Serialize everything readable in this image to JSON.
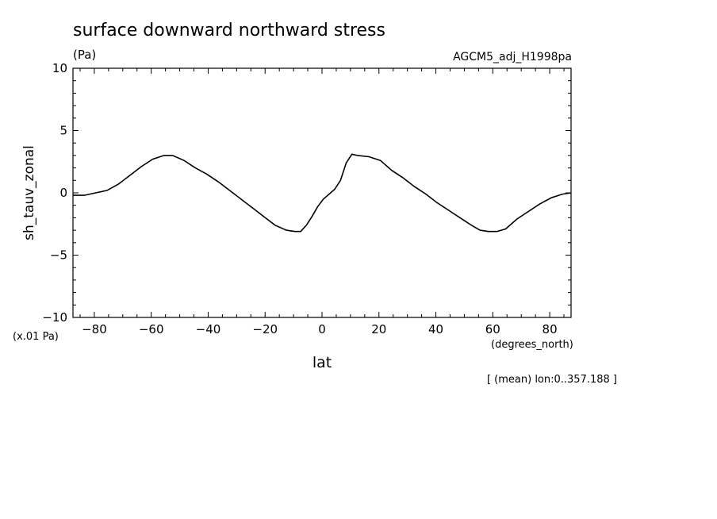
{
  "chart_data": {
    "type": "line",
    "title": "surface downward northward stress",
    "unit_label": "(Pa)",
    "dataset_label": "AGCM5_adj_H1998pa",
    "ylabel": "sh_tauv_zonal",
    "yscale_label": "(x.01 Pa)",
    "xlabel": "lat",
    "xunit_label": "(degrees_north)",
    "footnote": "[ (mean) lon:0..357.188 ]",
    "xlim": [
      -87.5,
      87.5
    ],
    "ylim": [
      -10,
      10
    ],
    "x_ticks": [
      -80,
      -60,
      -40,
      -20,
      0,
      20,
      40,
      60,
      80
    ],
    "x_tick_labels": [
      "−80",
      "−60",
      "−40",
      "−20",
      "0",
      "20",
      "40",
      "60",
      "80"
    ],
    "y_ticks": [
      -10,
      -5,
      0,
      5,
      10
    ],
    "y_tick_labels": [
      "−10",
      "−5",
      "0",
      "5",
      "10"
    ],
    "grid": false,
    "line_color": "#000000",
    "series": [
      {
        "x": [
          -87.5,
          -83.5,
          -79.5,
          -75.5,
          -71.5,
          -67.5,
          -63.5,
          -59.5,
          -55.5,
          -52.5,
          -48.5,
          -44.5,
          -40.5,
          -36.5,
          -32.5,
          -28.5,
          -24.5,
          -20.5,
          -16.5,
          -12.5,
          -9.5,
          -7.5,
          -5.5,
          -3.5,
          -1.5,
          0.5,
          2.5,
          4.5,
          6.5,
          8.5,
          10.5,
          12.5,
          16.5,
          20.5,
          24.5,
          28.5,
          32.5,
          36.5,
          40.5,
          44.5,
          48.5,
          52.5,
          55.5,
          58.5,
          61.5,
          64.5,
          68.5,
          72.5,
          76.5,
          80.5,
          84.5,
          87.5
        ],
        "values": [
          -0.2,
          -0.2,
          0.0,
          0.2,
          0.7,
          1.4,
          2.1,
          2.7,
          3.0,
          3.0,
          2.6,
          2.0,
          1.5,
          0.9,
          0.2,
          -0.5,
          -1.2,
          -1.9,
          -2.6,
          -3.0,
          -3.1,
          -3.1,
          -2.6,
          -1.9,
          -1.1,
          -0.5,
          -0.1,
          0.3,
          1.0,
          2.4,
          3.1,
          3.0,
          2.9,
          2.6,
          1.8,
          1.2,
          0.5,
          -0.1,
          -0.8,
          -1.4,
          -2.0,
          -2.6,
          -3.0,
          -3.1,
          -3.1,
          -2.9,
          -2.1,
          -1.5,
          -0.9,
          -0.4,
          -0.1,
          0.0
        ]
      }
    ]
  }
}
